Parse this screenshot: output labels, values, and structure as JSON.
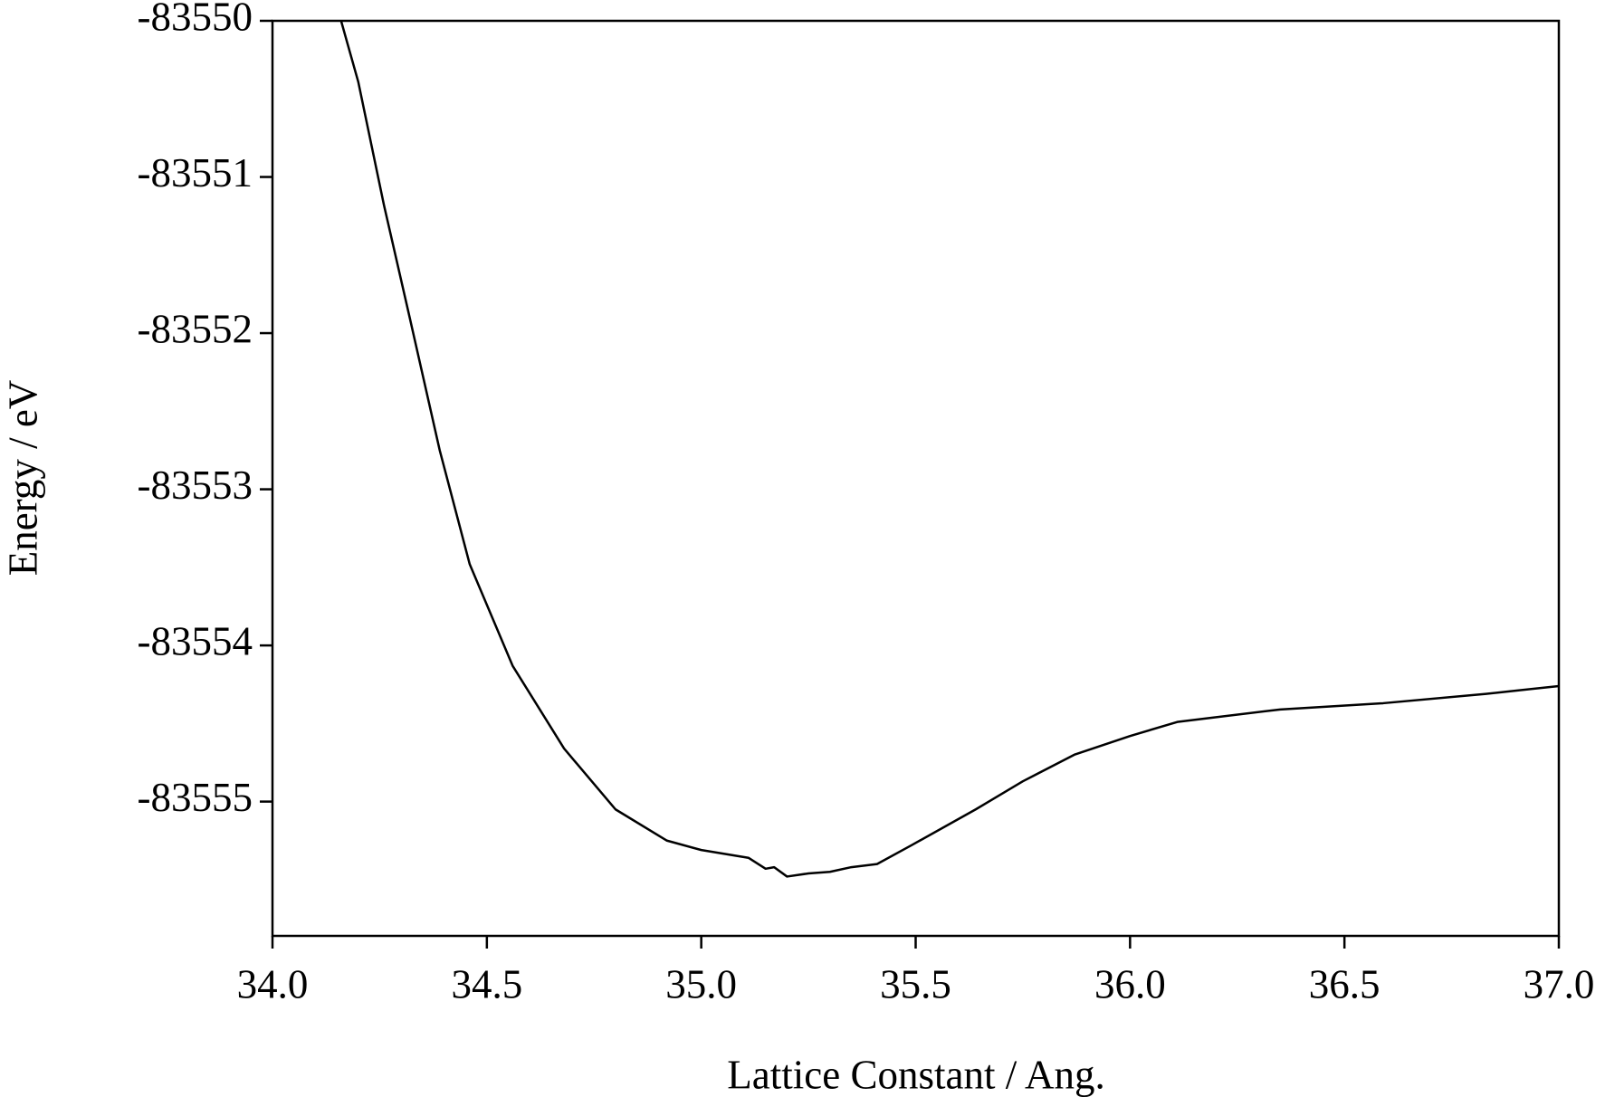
{
  "chart_data": {
    "type": "line",
    "x_label": "Lattice Constant / Ang.",
    "y_label": "Energy / eV",
    "series": [
      {
        "color": "#000000",
        "x": [
          34.16,
          34.2,
          34.26,
          34.32,
          34.39,
          34.46,
          34.56,
          34.68,
          34.8,
          34.92,
          35.0,
          35.11,
          35.15,
          35.17,
          35.2,
          35.25,
          35.3,
          35.35,
          35.41,
          35.49,
          35.64,
          35.75,
          35.87,
          36.0,
          36.11,
          36.35,
          36.59,
          36.83,
          37.0
        ],
        "values": [
          -83550.0,
          -83550.39,
          -83551.18,
          -83551.9,
          -83552.75,
          -83553.48,
          -83554.13,
          -83554.66,
          -83555.05,
          -83555.25,
          -83555.31,
          -83555.36,
          -83555.43,
          -83555.42,
          -83555.48,
          -83555.46,
          -83555.45,
          -83555.42,
          -83555.4,
          -83555.28,
          -83555.05,
          -83554.87,
          -83554.7,
          -83554.58,
          -83554.49,
          -83554.41,
          -83554.37,
          -83554.31,
          -83554.26
        ]
      }
    ],
    "xlim": [
      34,
      37
    ],
    "xticks": [
      {
        "value": 34,
        "label": "34.0"
      },
      {
        "value": 34.5,
        "label": "34.5"
      },
      {
        "value": 35,
        "label": "35.0"
      },
      {
        "value": 35.5,
        "label": "35.5"
      },
      {
        "value": 36,
        "label": "36.0"
      },
      {
        "value": 36.5,
        "label": "36.5"
      },
      {
        "value": 37,
        "label": "37.0"
      }
    ],
    "ylim": [
      -83555.86,
      -83550
    ],
    "yticks": [
      -83550,
      -83551,
      -83552,
      -83553,
      -83554,
      -83555
    ],
    "grid": false
  }
}
